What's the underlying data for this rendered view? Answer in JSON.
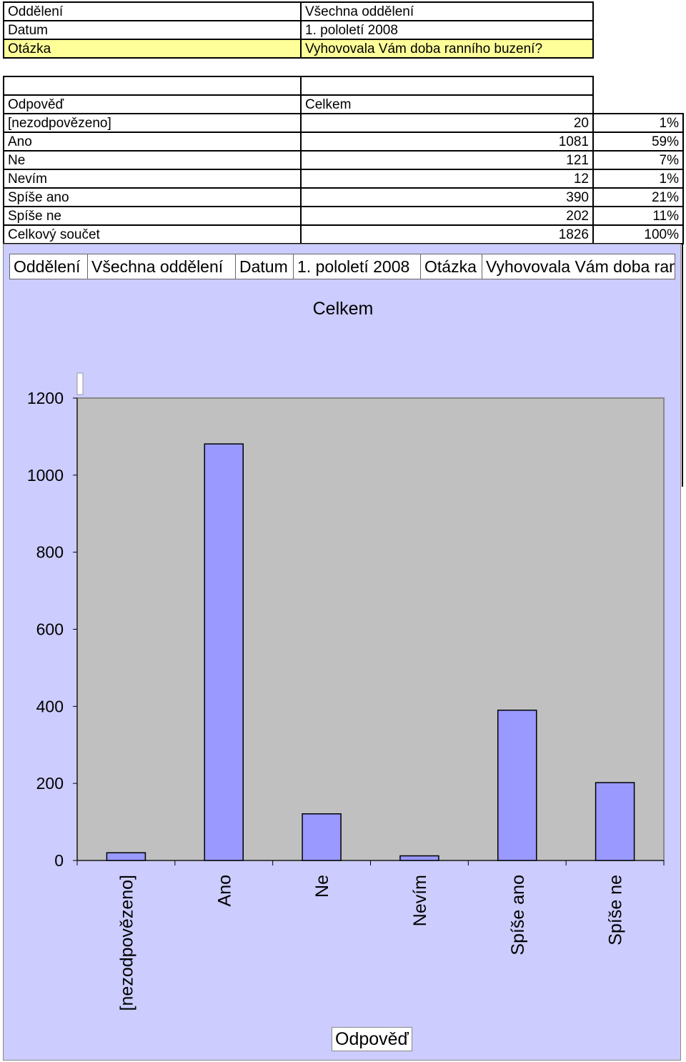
{
  "info": {
    "oddeleni_label": "Oddělení",
    "oddeleni_value": "Všechna oddělení",
    "datum_label": "Datum",
    "datum_value": "1. pololetí 2008",
    "otazka_label": "Otázka",
    "otazka_value": "Vyhovovala Vám doba ranního buzení?"
  },
  "table": {
    "col_answer": "Odpověď",
    "col_total": "Celkem",
    "rows": [
      {
        "label": "[nezodpovězeno]",
        "count": "20",
        "pct": "1%"
      },
      {
        "label": "Ano",
        "count": "1081",
        "pct": "59%"
      },
      {
        "label": "Ne",
        "count": "121",
        "pct": "7%"
      },
      {
        "label": "Nevím",
        "count": "12",
        "pct": "1%"
      },
      {
        "label": "Spíše ano",
        "count": "390",
        "pct": "21%"
      },
      {
        "label": "Spíše ne",
        "count": "202",
        "pct": "11%"
      }
    ],
    "total_label": "Celkový součet",
    "total_count": "1826",
    "total_pct": "100%"
  },
  "chart_header": {
    "oddeleni_label": "Oddělení",
    "oddeleni_value": "Všechna oddělení",
    "datum_label": "Datum",
    "datum_value": "1. pololetí 2008",
    "otazka_label": "Otázka",
    "otazka_value": "Vyhovovala Vám doba ranního buzení?"
  },
  "chart_data": {
    "type": "bar",
    "title": "Celkem",
    "xlabel": "Odpověď",
    "ylabel": "",
    "categories": [
      "[nezodpovězeno]",
      "Ano",
      "Ne",
      "Nevím",
      "Spíše ano",
      "Spíše ne"
    ],
    "values": [
      20,
      1081,
      121,
      12,
      390,
      202
    ],
    "ylim": [
      0,
      1200
    ],
    "yticks": [
      0,
      200,
      400,
      600,
      800,
      1000,
      1200
    ],
    "grid": false,
    "colors": {
      "background": "#ccccff",
      "plot": "#c0c0c0",
      "bar": "#9999ff",
      "bar_edge": "#000000"
    }
  }
}
